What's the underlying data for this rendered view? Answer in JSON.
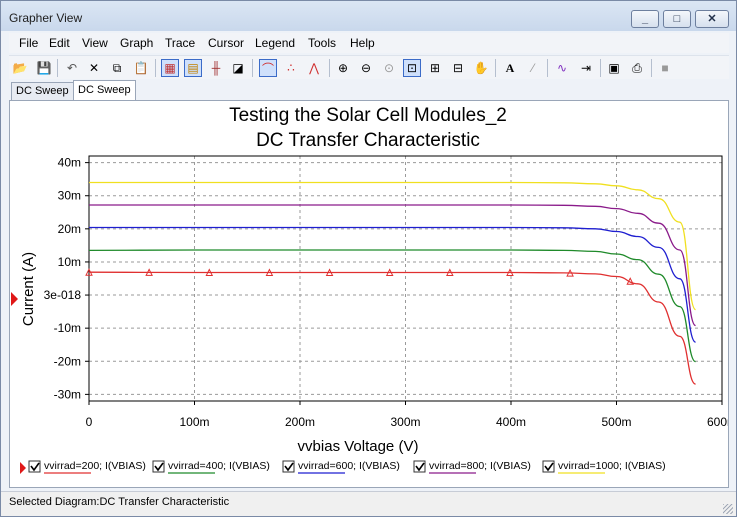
{
  "window": {
    "title": "Grapher View"
  },
  "menu": [
    "File",
    "Edit",
    "View",
    "Graph",
    "Trace",
    "Cursor",
    "Legend",
    "Tools",
    "Help"
  ],
  "toolbar": {
    "buttons": [
      "open-icon",
      "save-icon",
      "undo-icon",
      "delete-icon",
      "copy-icon",
      "paste-icon",
      "grid-icon",
      "legend-icon",
      "toggle-bars-icon",
      "black-white-icon",
      "cursors-icon",
      "show-markers-icon",
      "datapoints-icon",
      "zoom-in-icon",
      "zoom-out-icon",
      "zoom-full-icon",
      "zoom-area-icon",
      "zoom-x-icon",
      "zoom-y-icon",
      "pan-icon",
      "text-icon",
      "label-icon",
      "select-trace-icon",
      "export-icon",
      "properties-icon",
      "print-icon",
      "stop-icon"
    ],
    "text_button": "A"
  },
  "tabs": [
    "DC Sweep",
    "DC Sweep"
  ],
  "status": "Selected Diagram:DC Transfer Characteristic",
  "chart_data": {
    "type": "line",
    "title": "Testing the Solar Cell Modules_2",
    "subtitle": "DC Transfer Characteristic",
    "xlabel": "vvbias Voltage (V)",
    "ylabel": "Current (A)",
    "xlim": [
      0,
      0.6
    ],
    "ylim": [
      -0.032,
      0.042
    ],
    "x_ticks": [
      {
        "v": 0,
        "label": "0"
      },
      {
        "v": 0.1,
        "label": "100m"
      },
      {
        "v": 0.2,
        "label": "200m"
      },
      {
        "v": 0.3,
        "label": "300m"
      },
      {
        "v": 0.4,
        "label": "400m"
      },
      {
        "v": 0.5,
        "label": "500m"
      },
      {
        "v": 0.6,
        "label": "600m"
      }
    ],
    "y_ticks": [
      {
        "v": 0.04,
        "label": "40m"
      },
      {
        "v": 0.03,
        "label": "30m"
      },
      {
        "v": 0.02,
        "label": "20m"
      },
      {
        "v": 0.01,
        "label": "10m"
      },
      {
        "v": 0,
        "label": "3e-018"
      },
      {
        "v": -0.01,
        "label": "-10m"
      },
      {
        "v": -0.02,
        "label": "-20m"
      },
      {
        "v": -0.03,
        "label": "-30m"
      }
    ],
    "grid": true,
    "legend_position": "bottom",
    "series": [
      {
        "name": "vvirrad=200; I(VBIAS)",
        "color": "#e03030",
        "x": [
          0,
          0.1,
          0.2,
          0.3,
          0.4,
          0.45,
          0.48,
          0.5,
          0.52,
          0.54,
          0.56,
          0.575
        ],
        "y": [
          0.0069,
          0.0068,
          0.0068,
          0.0068,
          0.0068,
          0.0067,
          0.0064,
          0.0056,
          0.0034,
          -0.0021,
          -0.0125,
          -0.0269
        ],
        "markers": true
      },
      {
        "name": "vvirrad=400; I(VBIAS)",
        "color": "#1f8a2a",
        "x": [
          0,
          0.1,
          0.2,
          0.3,
          0.4,
          0.45,
          0.48,
          0.5,
          0.52,
          0.54,
          0.56,
          0.575
        ],
        "y": [
          0.0135,
          0.0136,
          0.0136,
          0.0136,
          0.0136,
          0.0135,
          0.0132,
          0.0124,
          0.0107,
          0.0063,
          -0.0035,
          -0.0201
        ],
        "markers": false
      },
      {
        "name": "vvirrad=600; I(VBIAS)",
        "color": "#1f1fd0",
        "x": [
          0,
          0.1,
          0.2,
          0.3,
          0.4,
          0.45,
          0.48,
          0.5,
          0.52,
          0.54,
          0.56,
          0.575
        ],
        "y": [
          0.0204,
          0.0204,
          0.0204,
          0.0204,
          0.0204,
          0.0203,
          0.02,
          0.0192,
          0.0177,
          0.0144,
          0.0049,
          -0.0142
        ],
        "markers": false
      },
      {
        "name": "vvirrad=800; I(VBIAS)",
        "color": "#8a1a8a",
        "x": [
          0,
          0.1,
          0.2,
          0.3,
          0.4,
          0.45,
          0.48,
          0.5,
          0.52,
          0.54,
          0.56,
          0.575
        ],
        "y": [
          0.0272,
          0.0272,
          0.0272,
          0.0272,
          0.0272,
          0.0271,
          0.0268,
          0.0261,
          0.0247,
          0.0217,
          0.0136,
          -0.0092
        ],
        "markers": false
      },
      {
        "name": "vvirrad=1000; I(VBIAS)",
        "color": "#f0e020",
        "x": [
          0,
          0.1,
          0.2,
          0.3,
          0.4,
          0.45,
          0.48,
          0.5,
          0.52,
          0.54,
          0.56,
          0.575
        ],
        "y": [
          0.034,
          0.034,
          0.034,
          0.034,
          0.034,
          0.0339,
          0.0336,
          0.033,
          0.0318,
          0.0291,
          0.022,
          -0.0044
        ],
        "markers": false
      }
    ]
  }
}
